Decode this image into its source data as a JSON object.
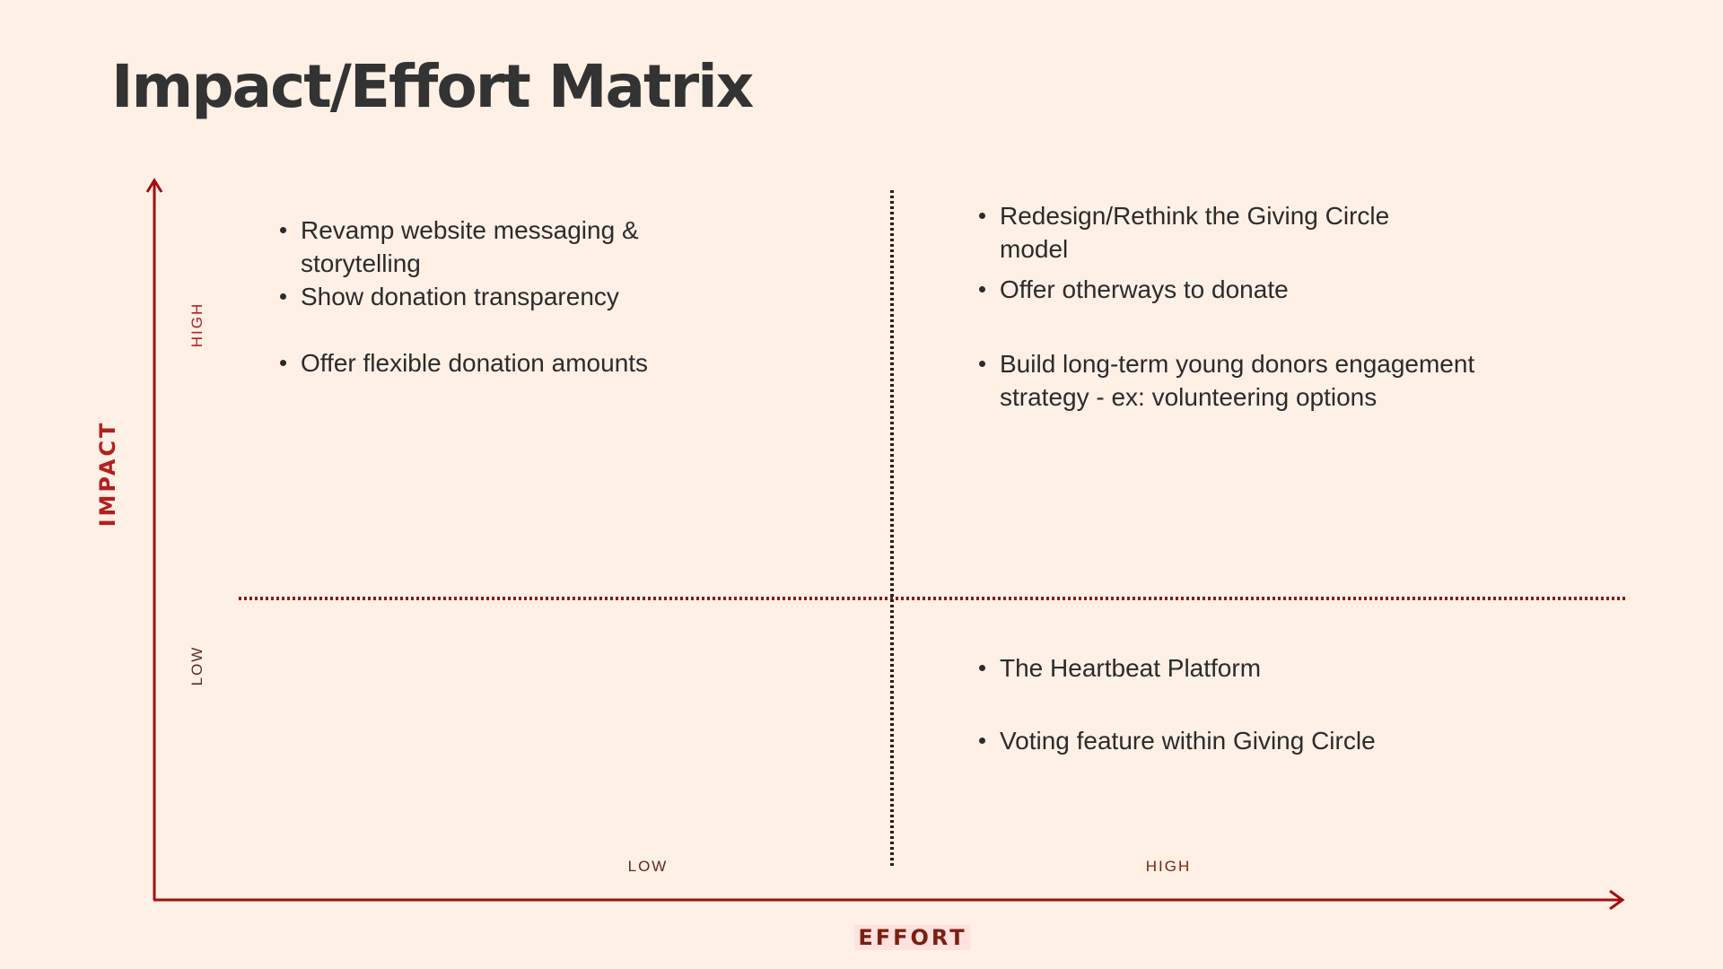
{
  "title": "Impact/Effort Matrix",
  "axes": {
    "y_label": "IMPACT",
    "x_label": "EFFORT",
    "y_levels": {
      "high": "HIGH",
      "low": "LOW"
    },
    "x_levels": {
      "low": "LOW",
      "high": "HIGH"
    }
  },
  "quadrants": {
    "high_impact_low_effort": [
      "Revamp website messaging & storytelling",
      "Show donation transparency",
      "Offer flexible donation amounts"
    ],
    "high_impact_high_effort": [
      "Redesign/Rethink the Giving Circle model",
      "Offer otherways to donate",
      "Build long-term young donors engagement strategy - ex: volunteering options"
    ],
    "low_impact_low_effort": [],
    "low_impact_high_effort": [
      "The Heartbeat Platform",
      "Voting feature within Giving Circle"
    ]
  },
  "colors": {
    "background": "#FEF0E5",
    "axis": "#A01010",
    "divider_horizontal": "#8A1A14",
    "divider_vertical": "#3A1A10",
    "text": "#2B2B2B"
  }
}
